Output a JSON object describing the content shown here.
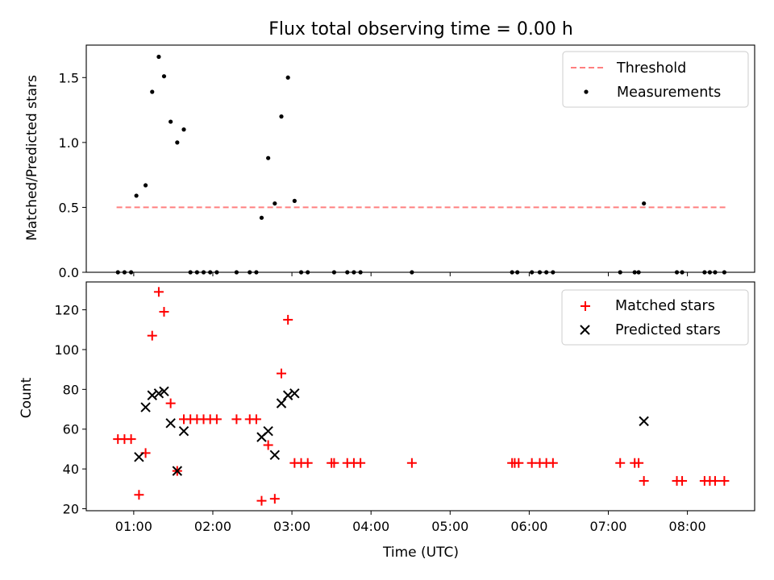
{
  "chart_data": [
    {
      "type": "scatter",
      "title": "Flux total observing time = 0.00 h",
      "xlabel": "",
      "ylabel": "Matched/Predicted stars",
      "ylim": [
        0,
        1.75
      ],
      "yticks": [
        "0.0",
        "0.5",
        "1.0",
        "1.5"
      ],
      "xlim_hours": [
        0.4,
        8.85
      ],
      "grid": false,
      "legend": "top-right",
      "series": [
        {
          "name": "Threshold",
          "kind": "dashed-line",
          "color": "#ff7f7f",
          "x_range": [
            "00:47",
            "08:29"
          ],
          "y": 0.5
        },
        {
          "name": "Measurements",
          "kind": "dot",
          "color": "#000000",
          "points": [
            [
              "00:48",
              0.0
            ],
            [
              "00:53",
              0.0
            ],
            [
              "00:58",
              0.0
            ],
            [
              "01:02",
              0.59
            ],
            [
              "01:09",
              0.67
            ],
            [
              "01:14",
              1.39
            ],
            [
              "01:19",
              1.66
            ],
            [
              "01:23",
              1.51
            ],
            [
              "01:28",
              1.16
            ],
            [
              "01:33",
              1.0
            ],
            [
              "01:38",
              1.1
            ],
            [
              "01:43",
              0.0
            ],
            [
              "01:48",
              0.0
            ],
            [
              "01:53",
              0.0
            ],
            [
              "01:58",
              0.0
            ],
            [
              "02:03",
              0.0
            ],
            [
              "02:18",
              0.0
            ],
            [
              "02:28",
              0.0
            ],
            [
              "02:33",
              0.0
            ],
            [
              "02:37",
              0.42
            ],
            [
              "02:42",
              0.88
            ],
            [
              "02:47",
              0.53
            ],
            [
              "02:52",
              1.2
            ],
            [
              "02:57",
              1.5
            ],
            [
              "03:02",
              0.55
            ],
            [
              "03:07",
              0.0
            ],
            [
              "03:12",
              0.0
            ],
            [
              "03:32",
              0.0
            ],
            [
              "03:42",
              0.0
            ],
            [
              "03:47",
              0.0
            ],
            [
              "03:52",
              0.0
            ],
            [
              "04:31",
              0.0
            ],
            [
              "05:47",
              0.0
            ],
            [
              "05:51",
              0.0
            ],
            [
              "06:02",
              0.0
            ],
            [
              "06:08",
              0.0
            ],
            [
              "06:13",
              0.0
            ],
            [
              "06:18",
              0.0
            ],
            [
              "07:09",
              0.0
            ],
            [
              "07:20",
              0.0
            ],
            [
              "07:23",
              0.0
            ],
            [
              "07:27",
              0.53
            ],
            [
              "07:52",
              0.0
            ],
            [
              "07:56",
              0.0
            ],
            [
              "08:13",
              0.0
            ],
            [
              "08:17",
              0.0
            ],
            [
              "08:21",
              0.0
            ],
            [
              "08:28",
              0.0
            ]
          ]
        }
      ]
    },
    {
      "type": "scatter",
      "title": "",
      "xlabel": "Time (UTC)",
      "ylabel": "Count",
      "ylim": [
        19,
        134
      ],
      "yticks": [
        "20",
        "40",
        "60",
        "80",
        "100",
        "120"
      ],
      "xticks": [
        "01:00",
        "02:00",
        "03:00",
        "04:00",
        "05:00",
        "06:00",
        "07:00",
        "08:00"
      ],
      "xlim_hours": [
        0.4,
        8.85
      ],
      "grid": false,
      "legend": "top-right",
      "series": [
        {
          "name": "Matched stars",
          "kind": "plus",
          "color": "#ff0000",
          "points": [
            [
              "00:48",
              55
            ],
            [
              "00:53",
              55
            ],
            [
              "00:58",
              55
            ],
            [
              "01:04",
              27
            ],
            [
              "01:09",
              48
            ],
            [
              "01:14",
              107
            ],
            [
              "01:19",
              129
            ],
            [
              "01:23",
              119
            ],
            [
              "01:28",
              73
            ],
            [
              "01:33",
              39
            ],
            [
              "01:38",
              65
            ],
            [
              "01:43",
              65
            ],
            [
              "01:48",
              65
            ],
            [
              "01:53",
              65
            ],
            [
              "01:58",
              65
            ],
            [
              "02:03",
              65
            ],
            [
              "02:18",
              65
            ],
            [
              "02:28",
              65
            ],
            [
              "02:33",
              65
            ],
            [
              "02:37",
              24
            ],
            [
              "02:42",
              52
            ],
            [
              "02:47",
              25
            ],
            [
              "02:52",
              88
            ],
            [
              "02:57",
              115
            ],
            [
              "03:02",
              43
            ],
            [
              "03:07",
              43
            ],
            [
              "03:12",
              43
            ],
            [
              "03:30",
              43
            ],
            [
              "03:32",
              43
            ],
            [
              "03:42",
              43
            ],
            [
              "03:47",
              43
            ],
            [
              "03:52",
              43
            ],
            [
              "04:31",
              43
            ],
            [
              "05:47",
              43
            ],
            [
              "05:49",
              43
            ],
            [
              "05:52",
              43
            ],
            [
              "06:02",
              43
            ],
            [
              "06:08",
              43
            ],
            [
              "06:13",
              43
            ],
            [
              "06:18",
              43
            ],
            [
              "07:09",
              43
            ],
            [
              "07:20",
              43
            ],
            [
              "07:23",
              43
            ],
            [
              "07:27",
              34
            ],
            [
              "07:52",
              34
            ],
            [
              "07:56",
              34
            ],
            [
              "08:13",
              34
            ],
            [
              "08:17",
              34
            ],
            [
              "08:21",
              34
            ],
            [
              "08:28",
              34
            ]
          ]
        },
        {
          "name": "Predicted stars",
          "kind": "x",
          "color": "#000000",
          "points": [
            [
              "01:04",
              46
            ],
            [
              "01:09",
              71
            ],
            [
              "01:14",
              77
            ],
            [
              "01:19",
              78
            ],
            [
              "01:23",
              79
            ],
            [
              "01:28",
              63
            ],
            [
              "01:33",
              39
            ],
            [
              "01:38",
              59
            ],
            [
              "02:37",
              56
            ],
            [
              "02:42",
              59
            ],
            [
              "02:47",
              47
            ],
            [
              "02:52",
              73
            ],
            [
              "02:57",
              77
            ],
            [
              "03:02",
              78
            ],
            [
              "07:27",
              64
            ]
          ]
        }
      ]
    }
  ]
}
